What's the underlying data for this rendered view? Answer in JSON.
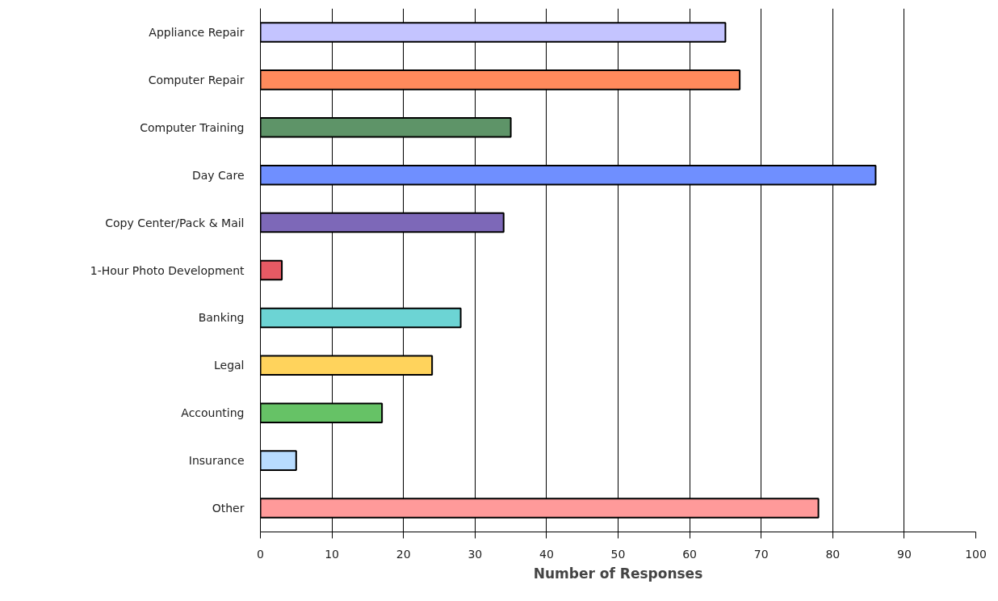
{
  "chart_data": {
    "type": "bar",
    "orientation": "horizontal",
    "xlabel": "Number of Responses",
    "categories": [
      "Appliance Repair",
      "Computer Repair",
      "Computer Training",
      "Day Care",
      "Copy Center/Pack & Mail",
      "1-Hour Photo Development",
      "Banking",
      "Legal",
      "Accounting",
      "Insurance",
      "Other"
    ],
    "values": [
      65,
      67,
      35,
      86,
      34,
      3,
      28,
      24,
      17,
      5,
      78
    ],
    "colors": [
      "#c4c4ff",
      "#ff8a5c",
      "#5e9468",
      "#6f8fff",
      "#7d68b8",
      "#e65a64",
      "#6cd4d4",
      "#ffd35c",
      "#66c266",
      "#b8dcff",
      "#ff9a9a"
    ],
    "xlim": [
      0,
      100
    ],
    "xticks": [
      0,
      10,
      20,
      30,
      40,
      50,
      60,
      70,
      80,
      90,
      100
    ],
    "grid": "x"
  }
}
